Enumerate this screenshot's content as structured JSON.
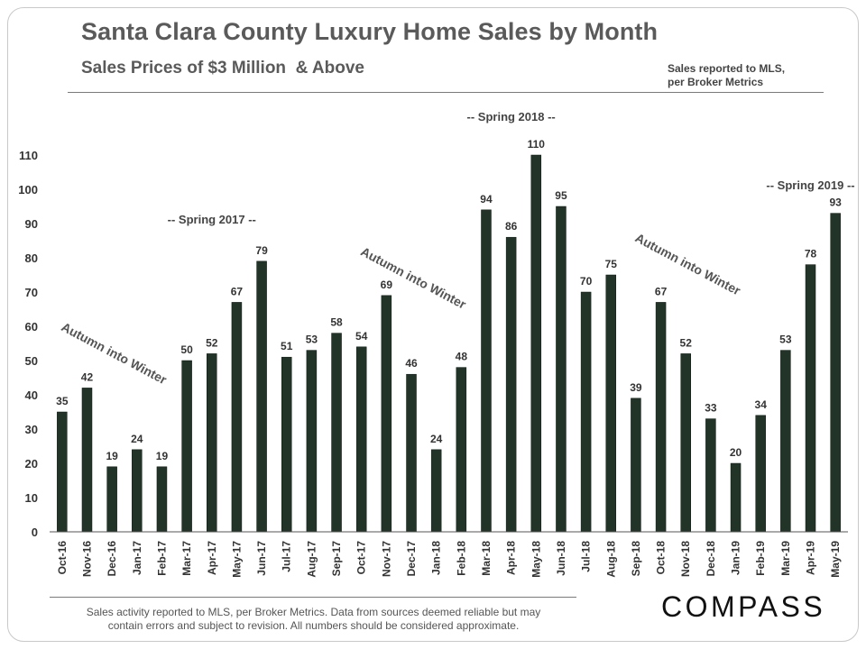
{
  "header": {
    "title": "Santa Clara County Luxury Home Sales by Month",
    "subtitle": "Sales Prices of $3 Million  & Above",
    "source_note_line1": "Sales reported to MLS,",
    "source_note_line2": "per Broker Metrics"
  },
  "footer": {
    "line1": "Sales activity reported to MLS, per Broker Metrics. Data from sources deemed reliable but may",
    "line2": "contain errors and subject to revision.  All numbers should be considered approximate.",
    "logo": "COMPASS"
  },
  "colors": {
    "bar": "#223328",
    "text": "#333333",
    "title": "#5a5a5a"
  },
  "chart_data": {
    "type": "bar",
    "categories": [
      "Oct-16",
      "Nov-16",
      "Dec-16",
      "Jan-17",
      "Feb-17",
      "Mar-17",
      "Apr-17",
      "May-17",
      "Jun-17",
      "Jul-17",
      "Aug-17",
      "Sep-17",
      "Oct-17",
      "Nov-17",
      "Dec-17",
      "Jan-18",
      "Feb-18",
      "Mar-18",
      "Apr-18",
      "May-18",
      "Jun-18",
      "Jul-18",
      "Aug-18",
      "Sep-18",
      "Oct-18",
      "Nov-18",
      "Dec-18",
      "Jan-19",
      "Feb-19",
      "Mar-19",
      "Apr-19",
      "May-19"
    ],
    "values": [
      35,
      42,
      19,
      24,
      19,
      50,
      52,
      67,
      79,
      51,
      53,
      58,
      54,
      69,
      46,
      24,
      48,
      94,
      86,
      110,
      95,
      70,
      75,
      39,
      67,
      52,
      33,
      20,
      34,
      53,
      78,
      93
    ],
    "ylim": [
      0,
      110
    ],
    "yticks": [
      0,
      10,
      20,
      30,
      40,
      50,
      60,
      70,
      80,
      90,
      100,
      110
    ],
    "grid": false,
    "data_labels": true,
    "annotations": [
      {
        "text": "-- Spring 2017 --",
        "category": "Apr-17",
        "value": 90,
        "rotated": false
      },
      {
        "text": "-- Spring 2018 --",
        "category": "Apr-18",
        "value": 120,
        "rotated": false
      },
      {
        "text": "-- Spring 2019 --",
        "category": "Apr-19",
        "value": 100,
        "rotated": false
      },
      {
        "text": "Autumn into Winter",
        "category": "Dec-16",
        "value": 51,
        "rotated": true
      },
      {
        "text": "Autumn into Winter",
        "category": "Dec-17",
        "value": 73,
        "rotated": true
      },
      {
        "text": "Autumn into Winter",
        "category": "Nov-18",
        "value": 77,
        "rotated": true
      }
    ]
  }
}
